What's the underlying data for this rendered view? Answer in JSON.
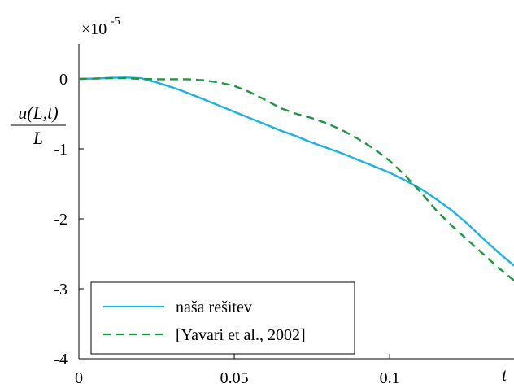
{
  "chart_data": {
    "type": "line",
    "xlabel": "t",
    "ylabel": {
      "numerator": "u(L,t)",
      "denominator": "L"
    },
    "y_multiplier": {
      "base": "×10",
      "exponent": "-5"
    },
    "xlim": [
      0,
      0.14
    ],
    "ylim": [
      -4,
      0.5
    ],
    "x_ticks": [
      0,
      0.05,
      0.1
    ],
    "x_tick_labels": [
      "0",
      "0.05",
      "0.1"
    ],
    "y_ticks": [
      0,
      -1,
      -2,
      -3,
      -4
    ],
    "y_tick_labels": [
      "0",
      "-1",
      "-2",
      "-3",
      "-4"
    ],
    "grid": false,
    "legend_position": "bottom-left",
    "series": [
      {
        "name": "naša rešitev",
        "color": "#1ab2e8",
        "dash": "solid",
        "x": [
          0,
          0.005,
          0.01,
          0.015,
          0.02,
          0.025,
          0.03,
          0.035,
          0.04,
          0.045,
          0.05,
          0.055,
          0.06,
          0.065,
          0.07,
          0.075,
          0.08,
          0.085,
          0.09,
          0.095,
          0.1,
          0.105,
          0.11,
          0.115,
          0.12,
          0.125,
          0.13,
          0.135,
          0.14
        ],
        "y": [
          0,
          0.005,
          0.015,
          0.02,
          0.01,
          -0.05,
          -0.12,
          -0.2,
          -0.29,
          -0.38,
          -0.47,
          -0.56,
          -0.65,
          -0.74,
          -0.82,
          -0.91,
          -0.99,
          -1.07,
          -1.16,
          -1.25,
          -1.34,
          -1.45,
          -1.57,
          -1.72,
          -1.88,
          -2.07,
          -2.28,
          -2.48,
          -2.67
        ]
      },
      {
        "name": "[Yavari et al., 2002]",
        "color": "#1a9a3c",
        "dash": "dashed",
        "x": [
          0,
          0.005,
          0.01,
          0.015,
          0.02,
          0.025,
          0.03,
          0.035,
          0.04,
          0.045,
          0.05,
          0.055,
          0.06,
          0.065,
          0.07,
          0.075,
          0.08,
          0.085,
          0.09,
          0.095,
          0.1,
          0.105,
          0.11,
          0.115,
          0.12,
          0.125,
          0.13,
          0.135,
          0.14
        ],
        "y": [
          0,
          0.005,
          0.01,
          0.01,
          0.0,
          -0.005,
          -0.005,
          -0.005,
          -0.02,
          -0.05,
          -0.1,
          -0.19,
          -0.3,
          -0.42,
          -0.5,
          -0.56,
          -0.64,
          -0.74,
          -0.86,
          -1.0,
          -1.17,
          -1.38,
          -1.62,
          -1.88,
          -2.1,
          -2.3,
          -2.5,
          -2.7,
          -2.88
        ]
      }
    ]
  }
}
